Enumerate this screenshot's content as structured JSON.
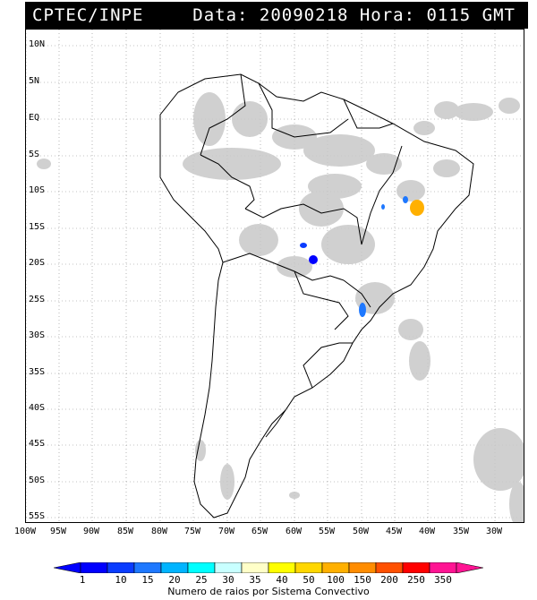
{
  "header": {
    "source": "CPTEC/INPE",
    "datetime": "Data: 20090218 Hora: 0115 GMT"
  },
  "map": {
    "lat_labels": [
      "10N",
      "5N",
      "EQ",
      "5S",
      "10S",
      "15S",
      "20S",
      "25S",
      "30S",
      "35S",
      "40S",
      "45S",
      "50S",
      "55S"
    ],
    "lon_labels": [
      "100W",
      "95W",
      "90W",
      "85W",
      "80W",
      "75W",
      "70W",
      "65W",
      "60W",
      "55W",
      "50W",
      "45W",
      "40W",
      "35W",
      "30W"
    ],
    "cloud_color": "#c8c8c8",
    "border_color": "#000000",
    "grid_color": "#888888"
  },
  "colorbar": {
    "labels": [
      "1",
      "10",
      "15",
      "20",
      "25",
      "30",
      "35",
      "40",
      "50",
      "100",
      "150",
      "200",
      "250",
      "350"
    ],
    "colors": [
      "#0000ff",
      "#0a3cff",
      "#1e78ff",
      "#00b4ff",
      "#00ffff",
      "#c8ffff",
      "#ffffc8",
      "#ffff00",
      "#ffd700",
      "#ffb000",
      "#ff8c00",
      "#ff5000",
      "#ff0000",
      "#ff1493"
    ],
    "title": "Numero de raios por Sistema Convectivo"
  }
}
